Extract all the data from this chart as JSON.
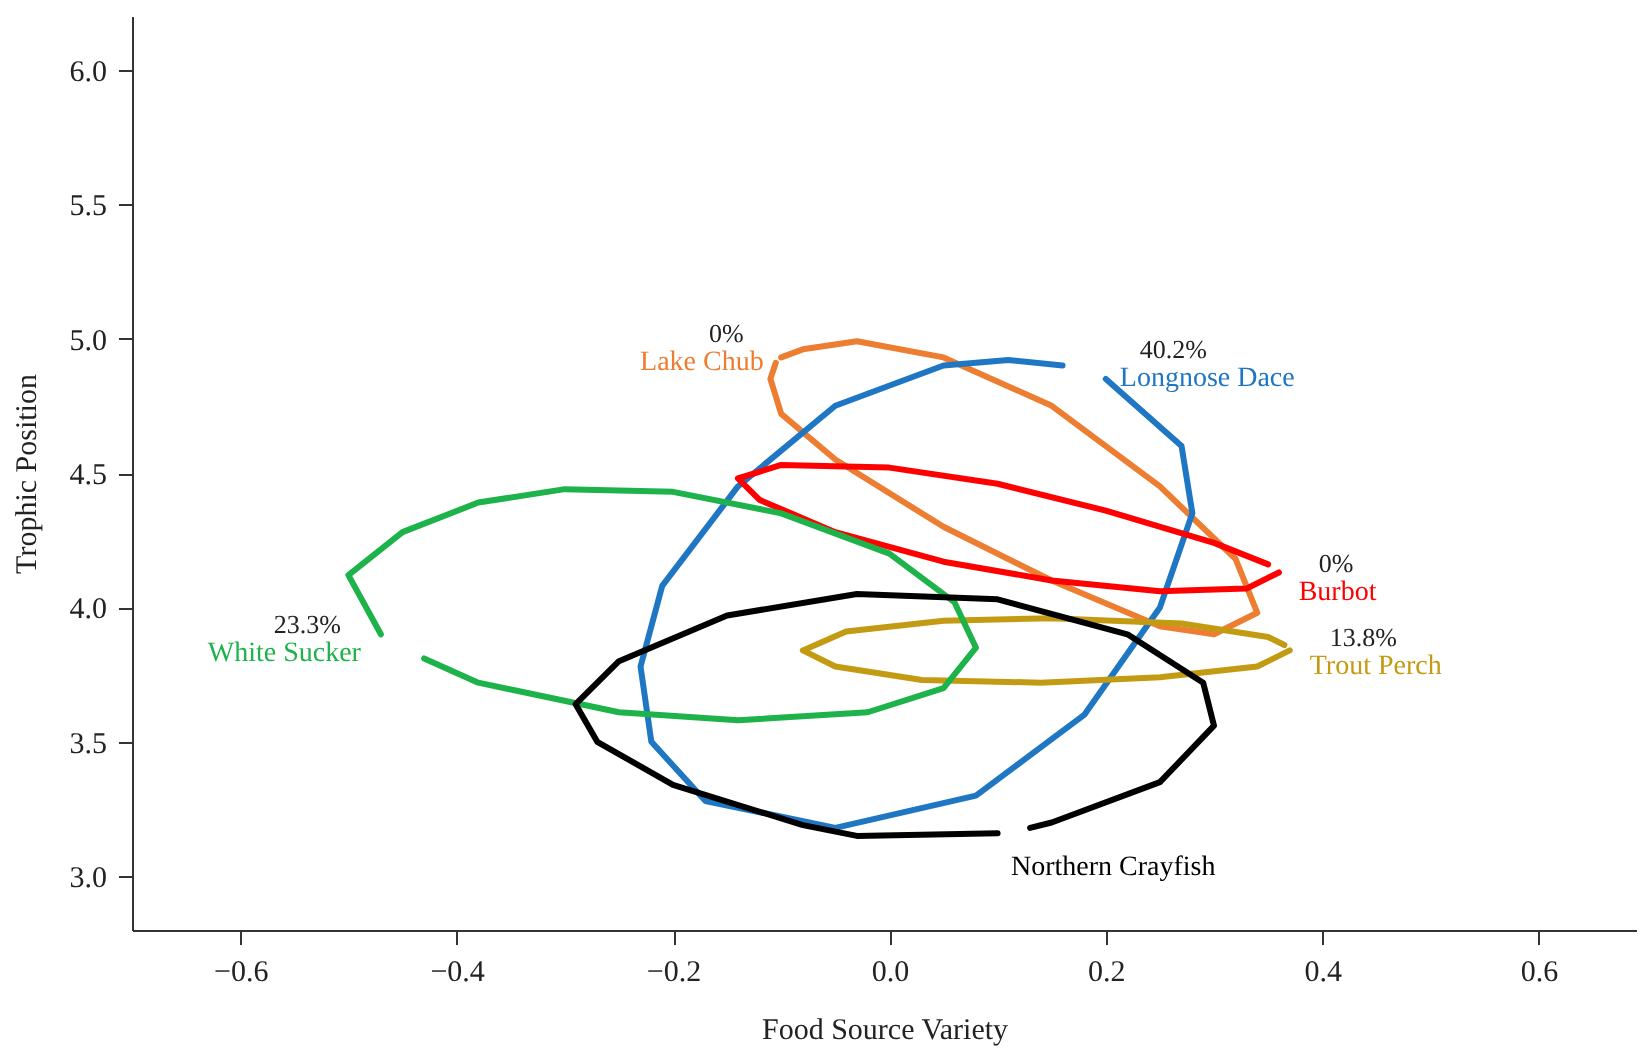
{
  "chart_data": {
    "type": "line",
    "xlabel": "Food Source Variety",
    "ylabel": "Trophic Position",
    "xlim": [
      -0.7,
      0.69
    ],
    "ylim": [
      2.8,
      6.2
    ],
    "xticks": [
      -0.6,
      -0.4,
      -0.2,
      {
        "value": 0,
        "label": "0.0"
      },
      0.2,
      0.4,
      0.6
    ],
    "yticks": [
      {
        "value": 3,
        "label": "3.0"
      },
      3.5,
      {
        "value": 4,
        "label": "4.0"
      },
      4.5,
      {
        "value": 5,
        "label": "5.0"
      },
      5.5,
      {
        "value": 6,
        "label": "6.0"
      }
    ],
    "grid": false,
    "marker": "none",
    "line_style": "solid",
    "series": [
      {
        "name": "Lake Chub",
        "color": "#ed7d31",
        "x": [
          -0.1,
          -0.08,
          -0.03,
          0.05,
          0.15,
          0.25,
          0.32,
          0.34,
          0.3,
          0.25,
          0.15,
          0.05,
          -0.05,
          -0.1,
          -0.11,
          -0.105
        ],
        "values": [
          4.93,
          4.96,
          4.99,
          4.93,
          4.75,
          4.45,
          4.18,
          3.98,
          3.9,
          3.93,
          4.1,
          4.3,
          4.55,
          4.72,
          4.85,
          4.91
        ]
      },
      {
        "name": "Longnose Dace",
        "color": "#1f77c4",
        "x": [
          0.2,
          0.27,
          0.28,
          0.25,
          0.18,
          0.08,
          -0.05,
          -0.17,
          -0.22,
          -0.23,
          -0.21,
          -0.14,
          -0.05,
          0.05,
          0.11,
          0.16
        ],
        "values": [
          4.85,
          4.6,
          4.35,
          4.0,
          3.6,
          3.3,
          3.18,
          3.28,
          3.5,
          3.78,
          4.08,
          4.45,
          4.75,
          4.9,
          4.92,
          4.9
        ]
      },
      {
        "name": "Burbot",
        "color": "#ff0000",
        "x": [
          0.36,
          0.33,
          0.25,
          0.15,
          0.05,
          -0.05,
          -0.12,
          -0.14,
          -0.1,
          0.0,
          0.1,
          0.2,
          0.3,
          0.35
        ],
        "values": [
          4.13,
          4.07,
          4.06,
          4.1,
          4.17,
          4.28,
          4.4,
          4.48,
          4.53,
          4.52,
          4.46,
          4.36,
          4.24,
          4.16
        ]
      },
      {
        "name": "Trout Perch",
        "color": "#c39b12",
        "x": [
          0.37,
          0.34,
          0.25,
          0.14,
          0.03,
          -0.05,
          -0.08,
          -0.04,
          0.05,
          0.15,
          0.27,
          0.35,
          0.365
        ],
        "values": [
          3.84,
          3.78,
          3.74,
          3.72,
          3.73,
          3.78,
          3.84,
          3.91,
          3.95,
          3.96,
          3.94,
          3.89,
          3.86
        ]
      },
      {
        "name": "White Sucker",
        "color": "#1db34a",
        "x": [
          -0.47,
          -0.5,
          -0.45,
          -0.38,
          -0.3,
          -0.2,
          -0.1,
          0.0,
          0.06,
          0.08,
          0.05,
          -0.02,
          -0.14,
          -0.25,
          -0.38,
          -0.43
        ],
        "values": [
          3.9,
          4.12,
          4.28,
          4.39,
          4.44,
          4.43,
          4.35,
          4.2,
          4.02,
          3.85,
          3.7,
          3.61,
          3.58,
          3.61,
          3.72,
          3.81
        ]
      },
      {
        "name": "Northern Crayfish",
        "color": "#000000",
        "x": [
          0.1,
          -0.03,
          -0.08,
          -0.2,
          -0.27,
          -0.29,
          -0.25,
          -0.15,
          -0.03,
          0.1,
          0.22,
          0.29,
          0.3,
          0.25,
          0.15,
          0.13
        ],
        "values": [
          3.16,
          3.15,
          3.19,
          3.34,
          3.5,
          3.64,
          3.8,
          3.97,
          4.05,
          4.03,
          3.9,
          3.72,
          3.56,
          3.35,
          3.2,
          3.18
        ]
      }
    ],
    "annotations": [
      "0%",
      "40.2%",
      "0%",
      "13.8%",
      "23.3%"
    ]
  }
}
